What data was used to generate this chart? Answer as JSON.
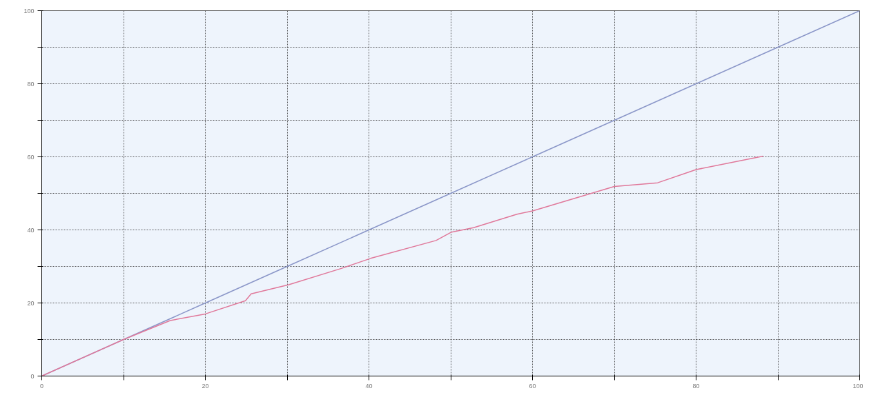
{
  "chart_data": {
    "type": "line",
    "xlim": [
      0,
      100
    ],
    "ylim": [
      0,
      100
    ],
    "xticks": [
      0,
      {
        "value": 10,
        "label": null
      },
      20,
      {
        "value": 30,
        "label": null
      },
      40,
      {
        "value": 50,
        "label": null
      },
      60,
      {
        "value": 70,
        "label": null
      },
      80,
      {
        "value": 90,
        "label": null
      },
      100
    ],
    "yticks": [
      0,
      {
        "value": 10,
        "label": null
      },
      20,
      {
        "value": 30,
        "label": null
      },
      40,
      {
        "value": 50,
        "label": null
      },
      60,
      {
        "value": 70,
        "label": null
      },
      80,
      {
        "value": 90,
        "label": null
      },
      100
    ],
    "grid": true,
    "marker": "none",
    "line_style": "solid",
    "series": [
      {
        "color": "#8a96c8",
        "x": [
          0,
          10,
          20,
          30,
          40,
          50,
          60,
          70,
          80,
          90,
          100
        ],
        "values": [
          0,
          10,
          20,
          30,
          40,
          50,
          60,
          70,
          80,
          90,
          100
        ]
      },
      {
        "color": "#e0789a",
        "x": [
          0,
          10,
          15.7,
          20,
          24.9,
          25.6,
          30.2,
          36.7,
          40.2,
          48.2,
          50.1,
          52.8,
          58.1,
          60,
          70,
          75.3,
          80,
          88.2
        ],
        "values": [
          0,
          10,
          15.2,
          17,
          20.6,
          22.5,
          25,
          29.5,
          32.2,
          37.1,
          39.4,
          40.6,
          44.3,
          45.2,
          51.9,
          52.9,
          56.5,
          60.2
        ]
      }
    ]
  }
}
